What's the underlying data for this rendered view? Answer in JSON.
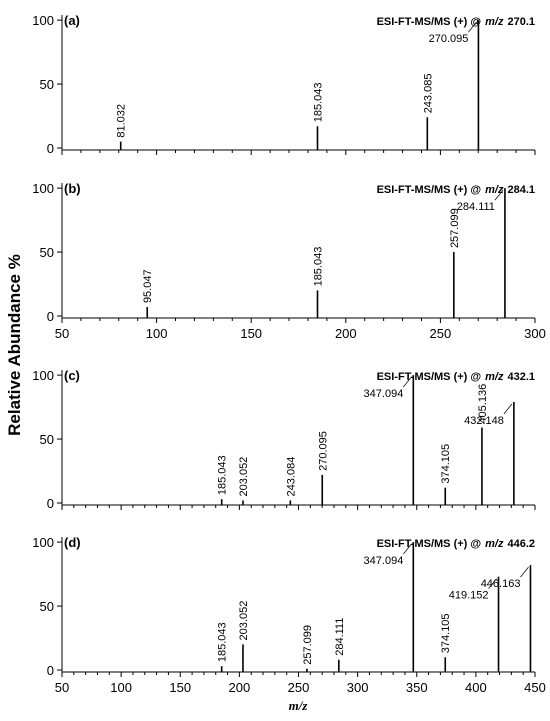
{
  "figure": {
    "ylabel": "Relative Abundance %",
    "xlabel": "m/z"
  },
  "chart_data": [
    {
      "type": "stem",
      "panel": "(a)",
      "title": "ESI-FT-MS/MS (+) @",
      "title_italic": "m/z",
      "title_value": "270.1",
      "x": [
        81.032,
        185.043,
        243.085,
        270.095
      ],
      "values": [
        5,
        17,
        24,
        100
      ],
      "color": "#000000",
      "xlim": [
        50,
        300
      ],
      "xticks": [
        50,
        100,
        150,
        200,
        250,
        300
      ],
      "xtick_labels": false,
      "ylim": [
        0,
        104
      ],
      "yticks": [
        0,
        50,
        100
      ]
    },
    {
      "type": "stem",
      "panel": "(b)",
      "title": "ESI-FT-MS/MS (+) @",
      "title_italic": "m/z",
      "title_value": "284.1",
      "x": [
        95.047,
        185.043,
        257.099,
        284.111
      ],
      "values": [
        7,
        20,
        50,
        100
      ],
      "color": "#000000",
      "xlim": [
        50,
        300
      ],
      "xticks": [
        50,
        100,
        150,
        200,
        250,
        300
      ],
      "xtick_labels": true,
      "ylim": [
        0,
        104
      ],
      "yticks": [
        0,
        50,
        100
      ]
    },
    {
      "type": "stem",
      "panel": "(c)",
      "title": "ESI-FT-MS/MS (+) @",
      "title_italic": "m/z",
      "title_value": "432.1",
      "x": [
        185.043,
        203.052,
        243.084,
        270.095,
        347.094,
        374.105,
        405.136,
        432.148
      ],
      "values": [
        3,
        2,
        2,
        22,
        100,
        12,
        59,
        79
      ],
      "color": "#000000",
      "xlim": [
        50,
        450
      ],
      "xticks": [
        50,
        100,
        150,
        200,
        250,
        300,
        350,
        400,
        450
      ],
      "xtick_labels": false,
      "ylim": [
        0,
        104
      ],
      "yticks": [
        0,
        50,
        100
      ]
    },
    {
      "type": "stem",
      "panel": "(d)",
      "title": "ESI-FT-MS/MS (+) @",
      "title_italic": "m/z",
      "title_value": "446.2",
      "x": [
        185.043,
        203.052,
        257.099,
        284.111,
        347.094,
        374.105,
        419.152,
        446.163
      ],
      "values": [
        3,
        20,
        1,
        8,
        100,
        10,
        73,
        82
      ],
      "color": "#000000",
      "xlim": [
        50,
        450
      ],
      "xticks": [
        50,
        100,
        150,
        200,
        250,
        300,
        350,
        400,
        450
      ],
      "xtick_labels": true,
      "ylim": [
        0,
        104
      ],
      "yticks": [
        0,
        50,
        100
      ]
    }
  ]
}
